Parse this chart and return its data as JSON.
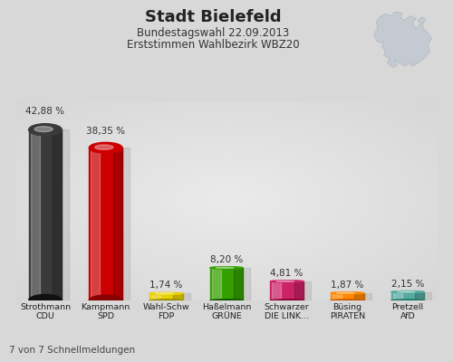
{
  "title_line1": "Stadt Bielefeld",
  "title_line2": "Bundestagswahl 22.09.2013",
  "title_line3": "Erststimmen Wahlbezirk WBZ20",
  "footer": "7 von 7 Schnellmeldungen",
  "categories": [
    "Strothmann\nCDU",
    "Kampmann\nSPD",
    "Wahl-Schw\nFDP",
    "Haßelmann\nGRÜNE",
    "Schwarzer\nDIE LINK…",
    "Büsing\nPIRATEN",
    "Pretzell\nAfD"
  ],
  "values": [
    42.88,
    38.35,
    1.74,
    8.2,
    4.81,
    1.87,
    2.15
  ],
  "value_labels": [
    "42,88 %",
    "38,35 %",
    "1,74 %",
    "8,20 %",
    "4,81 %",
    "1,87 %",
    "2,15 %"
  ],
  "bar_colors": [
    "#3a3a3a",
    "#cc0000",
    "#e8d000",
    "#33a000",
    "#cc2266",
    "#ff8800",
    "#55aaa0"
  ],
  "bar_colors_light": [
    "#888888",
    "#ff6666",
    "#ffee66",
    "#88dd44",
    "#ff77aa",
    "#ffcc66",
    "#99ddcc"
  ],
  "bar_colors_dark": [
    "#111111",
    "#880000",
    "#998800",
    "#115500",
    "#880033",
    "#cc5500",
    "#227766"
  ],
  "background_color": "#d8d8d8",
  "ylim": [
    0,
    50
  ],
  "shadow_color": "#bbbbbb"
}
